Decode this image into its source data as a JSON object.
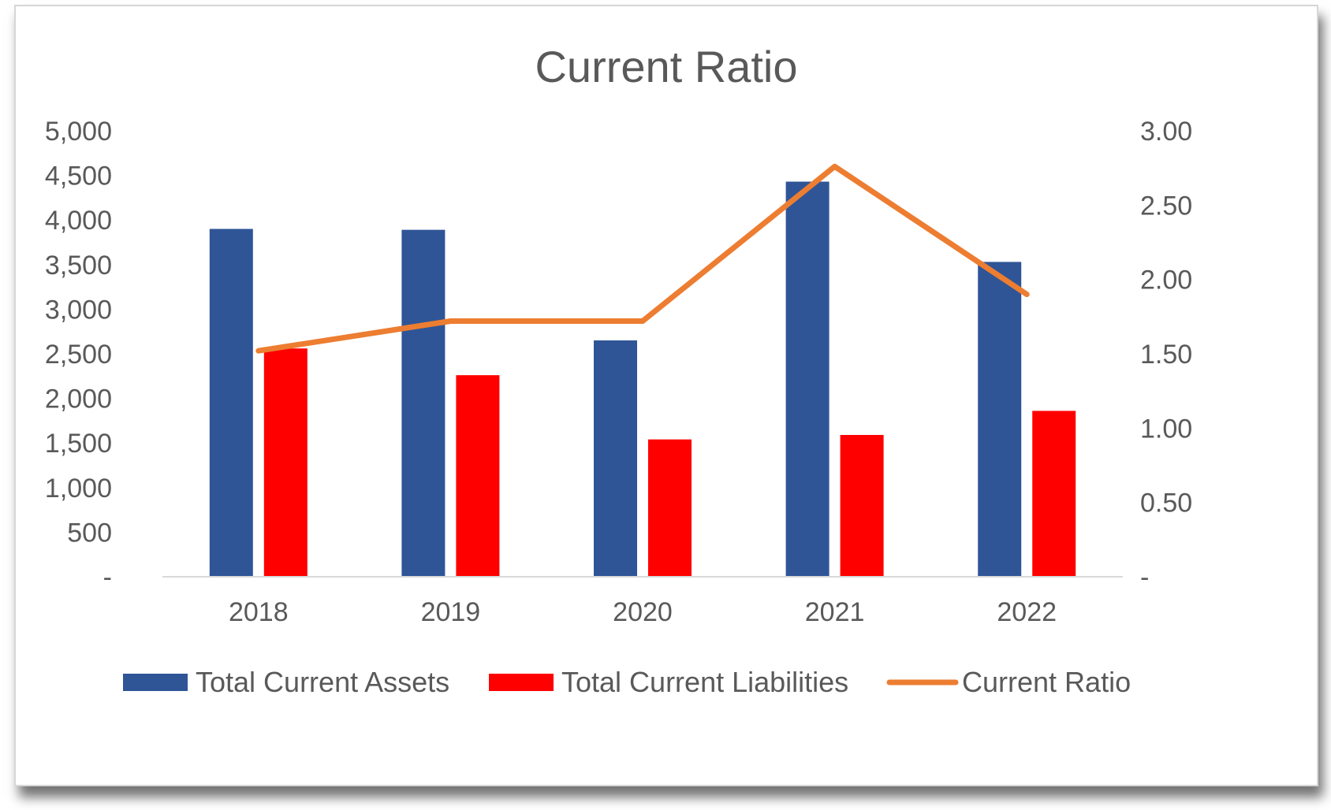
{
  "chart_data": {
    "type": "bar",
    "title": "Current Ratio",
    "categories": [
      "2018",
      "2019",
      "2020",
      "2021",
      "2022"
    ],
    "series": [
      {
        "name": "Total Current Assets",
        "type": "bar",
        "axis": "left",
        "color": "#2F5597",
        "values": [
          3900,
          3890,
          2650,
          4430,
          3530
        ]
      },
      {
        "name": "Total Current Liabilities",
        "type": "bar",
        "axis": "left",
        "color": "#FF0000",
        "values": [
          2560,
          2260,
          1540,
          1590,
          1860
        ]
      },
      {
        "name": "Current Ratio",
        "type": "line",
        "axis": "right",
        "color": "#ED7D31",
        "values": [
          1.52,
          1.72,
          1.72,
          2.76,
          1.9
        ]
      }
    ],
    "y_left": {
      "min": 0,
      "max": 5000,
      "ticks": [
        0,
        500,
        1000,
        1500,
        2000,
        2500,
        3000,
        3500,
        4000,
        4500,
        5000
      ],
      "tick_labels": [
        "-",
        "500",
        "1,000",
        "1,500",
        "2,000",
        "2,500",
        "3,000",
        "3,500",
        "4,000",
        "4,500",
        "5,000"
      ]
    },
    "y_right": {
      "min": 0,
      "max": 3,
      "ticks": [
        0,
        0.5,
        1.0,
        1.5,
        2.0,
        2.5,
        3.0
      ],
      "tick_labels": [
        "-",
        "0.50",
        "1.00",
        "1.50",
        "2.00",
        "2.50",
        "3.00"
      ]
    },
    "grid": false,
    "legend_position": "bottom"
  }
}
